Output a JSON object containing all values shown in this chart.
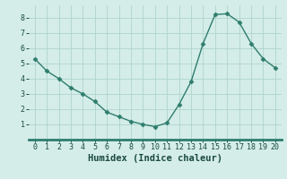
{
  "x": [
    0,
    1,
    2,
    3,
    4,
    5,
    6,
    7,
    8,
    9,
    10,
    11,
    12,
    13,
    14,
    15,
    16,
    17,
    18,
    19,
    20
  ],
  "y": [
    5.3,
    4.5,
    4.0,
    3.4,
    3.0,
    2.5,
    1.8,
    1.5,
    1.2,
    1.0,
    0.85,
    1.1,
    2.3,
    3.8,
    6.3,
    8.2,
    8.25,
    7.7,
    6.3,
    5.3,
    4.7
  ],
  "line_color": "#2e7d6e",
  "marker": "D",
  "marker_size": 2.5,
  "bg_color": "#d4ede8",
  "grid_color": "#afd4cc",
  "xlabel": "Humidex (Indice chaleur)",
  "xlim": [
    -0.5,
    20.5
  ],
  "ylim": [
    0.0,
    8.8
  ],
  "yticks": [
    1,
    2,
    3,
    4,
    5,
    6,
    7,
    8
  ],
  "xticks": [
    0,
    1,
    2,
    3,
    4,
    5,
    6,
    7,
    8,
    9,
    10,
    11,
    12,
    13,
    14,
    15,
    16,
    17,
    18,
    19,
    20
  ],
  "xlabel_fontsize": 7.5,
  "tick_fontsize": 6.0,
  "xlabel_color": "#1a4a40",
  "tick_color": "#1a4a40",
  "line_width": 1.0,
  "bottom_bar_color": "#2e7d6e",
  "bottom_bar_height": 3
}
